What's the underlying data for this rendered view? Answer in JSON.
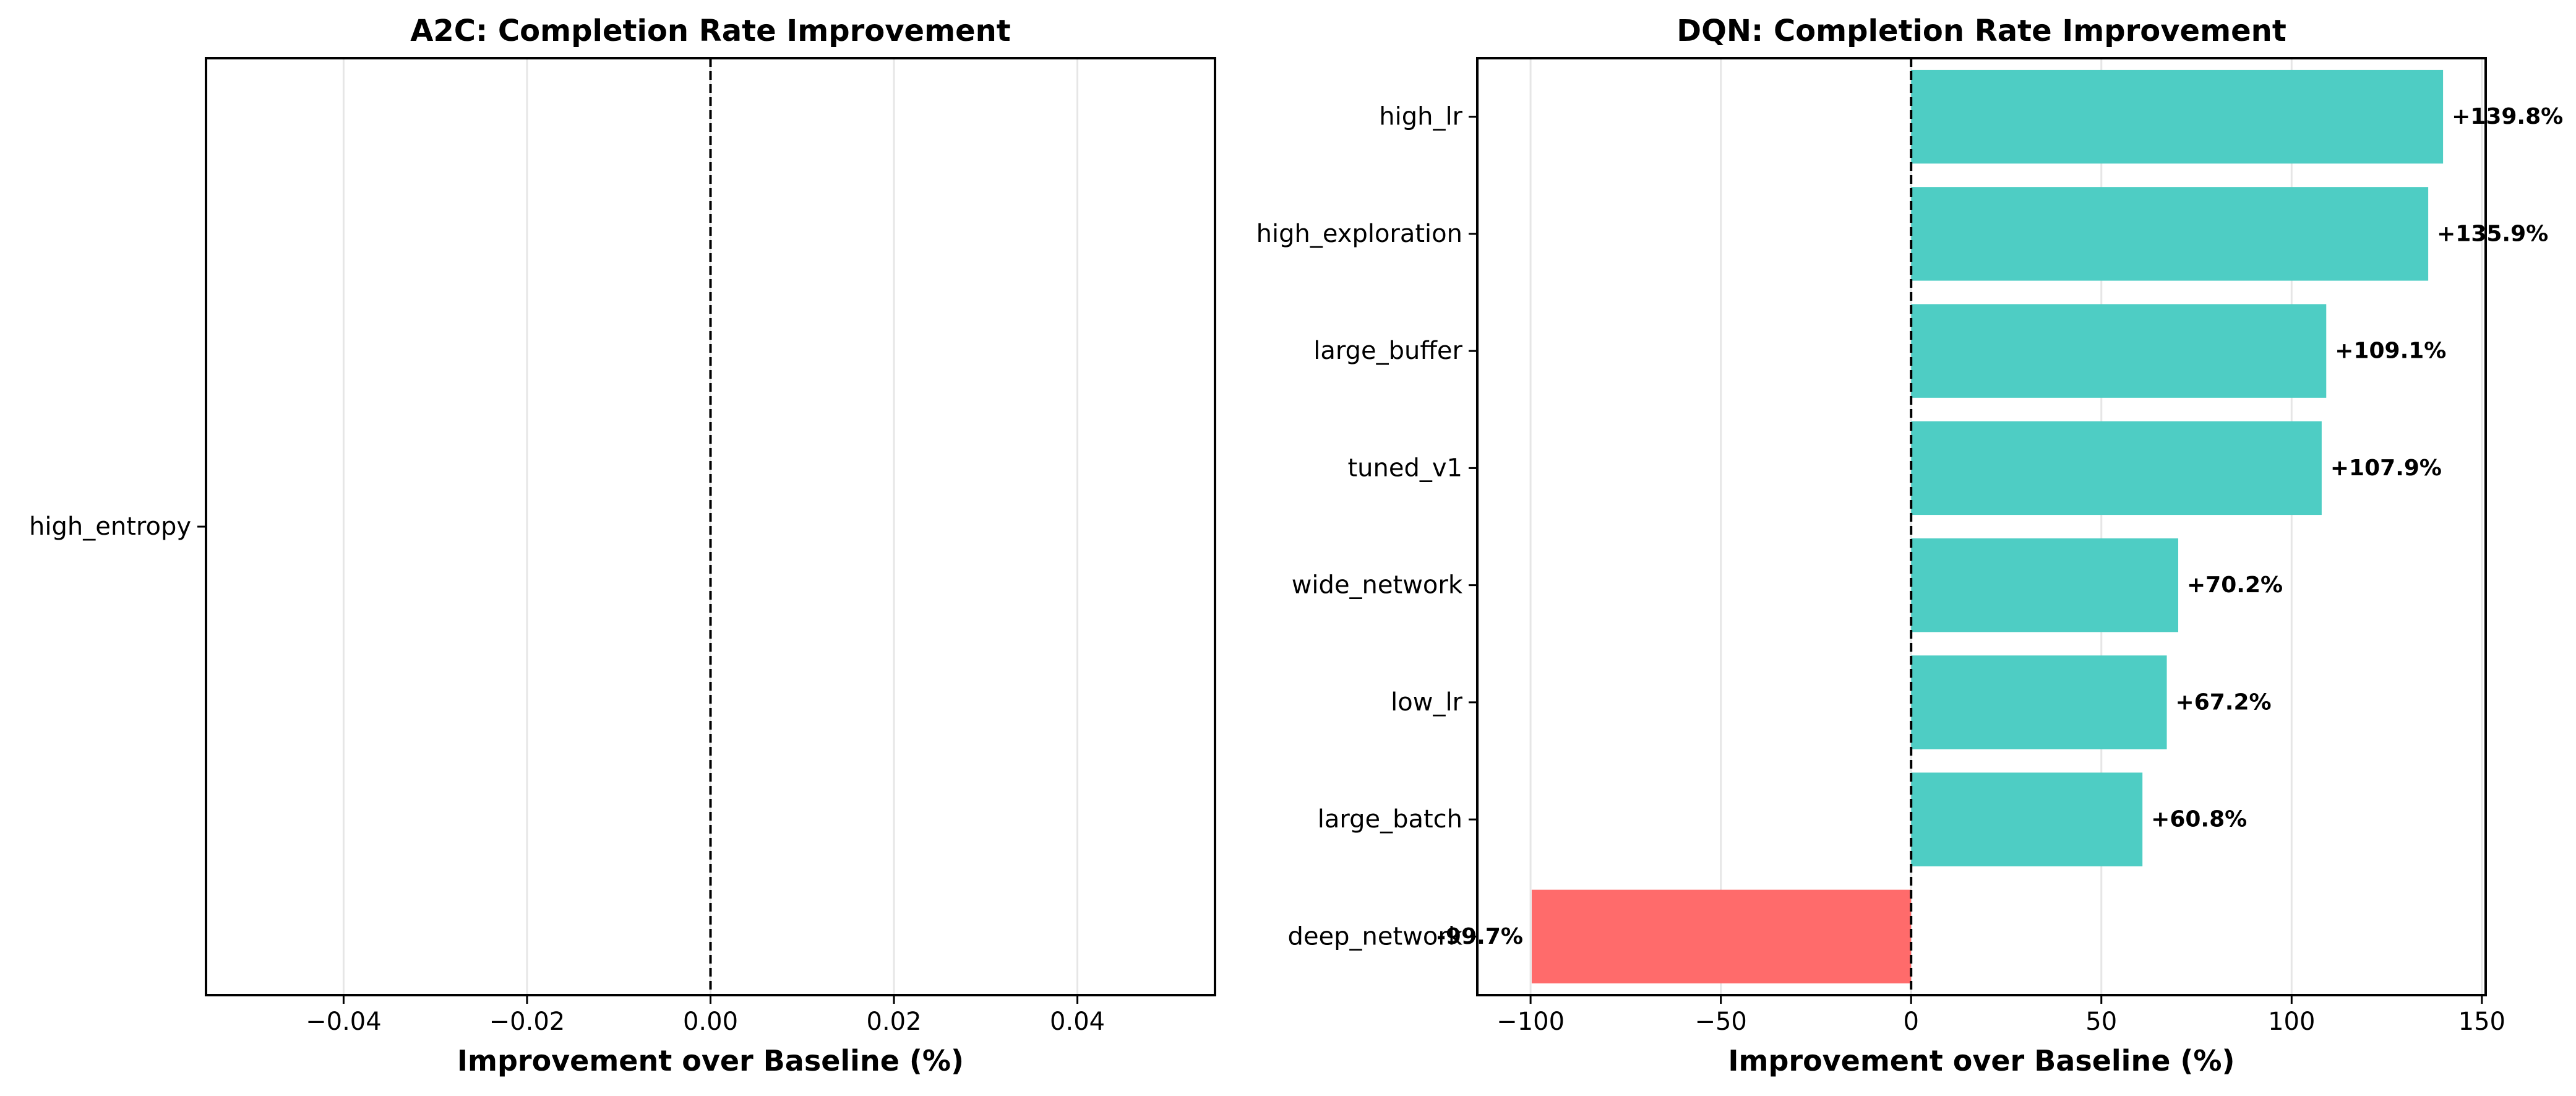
{
  "chart_data": [
    {
      "type": "bar",
      "orientation": "horizontal",
      "title": "A2C: Completion Rate Improvement",
      "xlabel": "Improvement over Baseline (%)",
      "ylabel": "",
      "categories": [
        "high_entropy"
      ],
      "values": [
        0.0
      ],
      "value_labels": [
        ""
      ],
      "xlim": [
        -0.055,
        0.055
      ],
      "xticks": [
        -0.04,
        -0.02,
        0.0,
        0.02,
        0.04
      ],
      "xtick_labels": [
        "−0.04",
        "−0.02",
        "0.00",
        "0.02",
        "0.04"
      ],
      "reference_line_x": 0,
      "grid": "x",
      "legend": "none"
    },
    {
      "type": "bar",
      "orientation": "horizontal",
      "title": "DQN: Completion Rate Improvement",
      "xlabel": "Improvement over Baseline (%)",
      "ylabel": "",
      "categories": [
        "high_lr",
        "high_exploration",
        "large_buffer",
        "tuned_v1",
        "wide_network",
        "low_lr",
        "large_batch",
        "deep_network"
      ],
      "values": [
        139.8,
        135.9,
        109.1,
        107.9,
        70.2,
        67.2,
        60.8,
        -99.7
      ],
      "value_labels": [
        "+139.8%",
        "+135.9%",
        "+109.1%",
        "+107.9%",
        "+70.2%",
        "+67.2%",
        "+60.8%",
        "-99.7%"
      ],
      "xlim": [
        -114,
        151
      ],
      "xticks": [
        -100,
        -50,
        0,
        50,
        100,
        150
      ],
      "xtick_labels": [
        "−100",
        "−50",
        "0",
        "50",
        "100",
        "150"
      ],
      "reference_line_x": 0,
      "grid": "x",
      "legend": "none",
      "colors": {
        "positive": "#4ECDC4",
        "negative": "#FF6B6B"
      }
    }
  ]
}
